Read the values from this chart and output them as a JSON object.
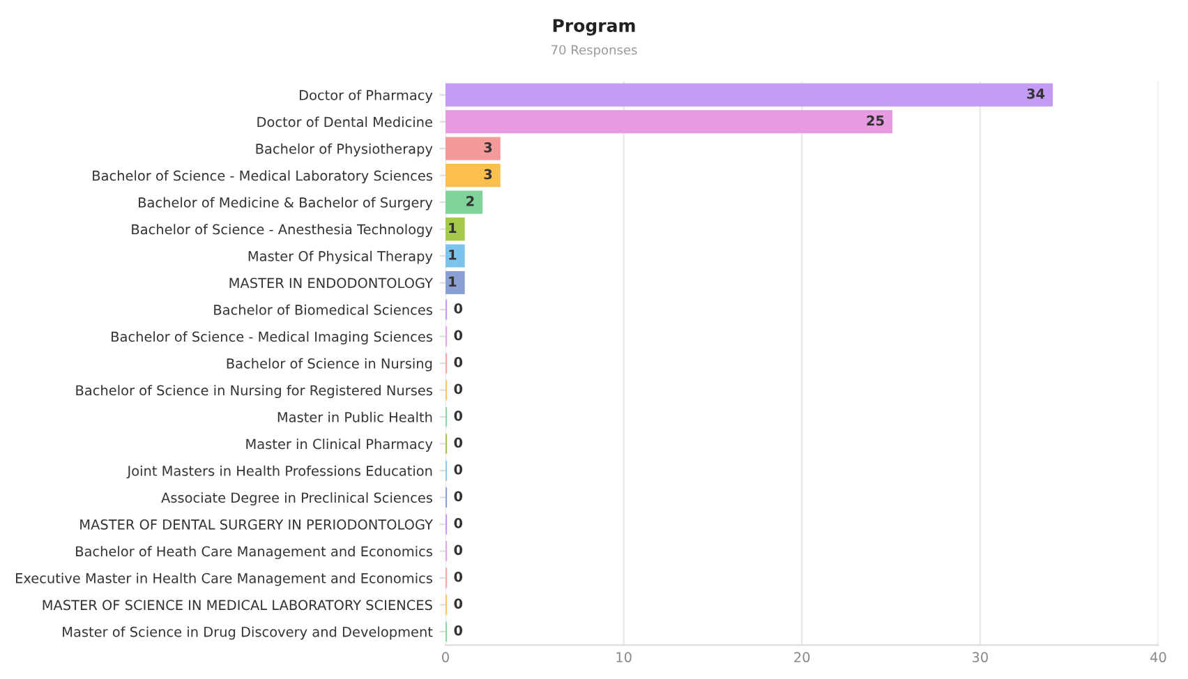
{
  "chart_data": {
    "type": "bar",
    "orientation": "horizontal",
    "title": "Program",
    "subtitle": "70 Responses",
    "categories": [
      "Doctor of Pharmacy",
      "Doctor of Dental Medicine",
      "Bachelor of Physiotherapy",
      "Bachelor of Science - Medical Laboratory Sciences",
      "Bachelor of Medicine & Bachelor of Surgery",
      "Bachelor of Science - Anesthesia Technology",
      "Master Of Physical Therapy",
      "MASTER IN ENDODONTOLOGY",
      "Bachelor of Biomedical Sciences",
      "Bachelor of Science - Medical Imaging Sciences",
      "Bachelor of Science in Nursing",
      "Bachelor of Science in Nursing for Registered Nurses",
      "Master in Public Health",
      "Master in Clinical Pharmacy",
      "Joint Masters in Health Professions Education",
      "Associate Degree in Preclinical Sciences",
      "MASTER OF DENTAL SURGERY IN PERIODONTOLOGY",
      "Bachelor of Heath Care Management and Economics",
      "Executive Master in Health Care Management and Economics",
      "MASTER OF SCIENCE IN MEDICAL LABORATORY SCIENCES",
      "Master of Science in Drug Discovery and Development"
    ],
    "values": [
      34,
      25,
      3,
      3,
      2,
      1,
      1,
      1,
      0,
      0,
      0,
      0,
      0,
      0,
      0,
      0,
      0,
      0,
      0,
      0,
      0
    ],
    "colors": [
      "#c39bf5",
      "#e79be0",
      "#f49a9a",
      "#fbbf4e",
      "#7fd39b",
      "#a5c94a",
      "#7cc3ee",
      "#8a9fd4",
      "#c39bf5",
      "#e0a8e8",
      "#f4a6a6",
      "#fbc55e",
      "#8fd3a8",
      "#a5c94a",
      "#8cc8ee",
      "#8a9fd4",
      "#c39bf5",
      "#e0a8e8",
      "#f4a6a6",
      "#fbc55e",
      "#8fd3a8"
    ],
    "xlim": [
      0,
      40
    ],
    "xticks": [
      0,
      10,
      20,
      30,
      40
    ],
    "grid": "x",
    "data_labels": true
  }
}
